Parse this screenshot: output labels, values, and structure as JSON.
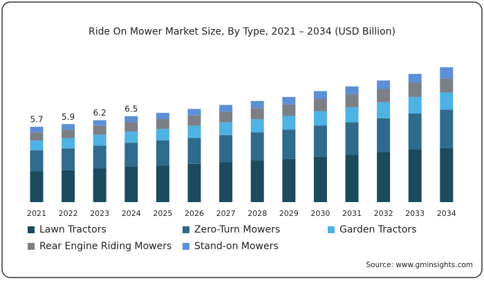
{
  "chart_data": {
    "type": "stacked_bar",
    "title": "Ride On Mower Market Size, By Type, 2021 – 2034 (USD Billion)",
    "categories": [
      "2021",
      "2022",
      "2023",
      "2024",
      "2025",
      "2026",
      "2027",
      "2028",
      "2029",
      "2030",
      "2031",
      "2032",
      "2033",
      "2034"
    ],
    "series": [
      {
        "name": "Lawn Tractors",
        "color": "#1c4a5e",
        "values": [
          2.35,
          2.42,
          2.54,
          2.67,
          2.77,
          2.89,
          3.01,
          3.14,
          3.26,
          3.44,
          3.59,
          3.77,
          3.98,
          4.1
        ]
      },
      {
        "name": "Zero-Turn Mowers",
        "color": "#2f6b8c",
        "values": [
          1.57,
          1.65,
          1.74,
          1.82,
          1.89,
          1.97,
          2.06,
          2.14,
          2.23,
          2.35,
          2.45,
          2.58,
          2.72,
          2.9
        ]
      },
      {
        "name": "Garden Tractors",
        "color": "#4eb2e4",
        "values": [
          0.73,
          0.77,
          0.81,
          0.85,
          0.88,
          0.92,
          0.96,
          0.99,
          1.03,
          1.09,
          1.14,
          1.2,
          1.26,
          1.3
        ]
      },
      {
        "name": "Rear Engine Riding Mowers",
        "color": "#7b8086",
        "values": [
          0.63,
          0.65,
          0.68,
          0.71,
          0.74,
          0.78,
          0.81,
          0.84,
          0.87,
          0.92,
          0.96,
          1.01,
          1.07,
          1.05
        ]
      },
      {
        "name": "Stand-on Mowers",
        "color": "#5d8fd6",
        "values": [
          0.42,
          0.41,
          0.43,
          0.45,
          0.47,
          0.49,
          0.51,
          0.54,
          0.56,
          0.6,
          0.61,
          0.64,
          0.67,
          0.85
        ]
      }
    ],
    "totals": [
      5.7,
      5.9,
      6.2,
      6.5
    ],
    "source": "Source: www.gminsights.com"
  }
}
